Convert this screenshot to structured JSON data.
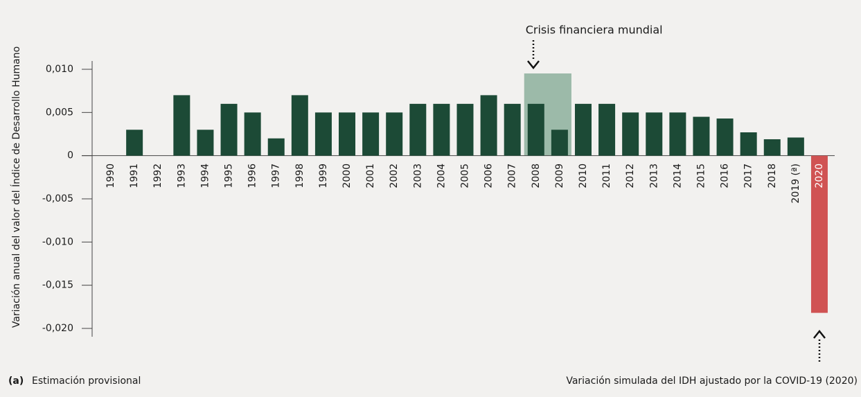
{
  "chart_data": {
    "type": "bar",
    "y_label": "Variación anual del valor del Índice de Desarrollo Humano",
    "categories": [
      "1990",
      "1991",
      "1992",
      "1993",
      "1994",
      "1995",
      "1996",
      "1997",
      "1998",
      "1999",
      "2000",
      "2001",
      "2002",
      "2003",
      "2004",
      "2005",
      "2006",
      "2007",
      "2008",
      "2009",
      "2010",
      "2011",
      "2012",
      "2013",
      "2014",
      "2015",
      "2016",
      "2017",
      "2018",
      "2019 (ª)",
      "2020"
    ],
    "values": [
      0,
      0.003,
      0,
      0.007,
      0.003,
      0.006,
      0.005,
      0.002,
      0.007,
      0.005,
      0.005,
      0.005,
      0.005,
      0.006,
      0.006,
      0.006,
      0.007,
      0.006,
      0.006,
      0.003,
      0.006,
      0.006,
      0.005,
      0.005,
      0.005,
      0.0045,
      0.0043,
      0.0027,
      0.0019,
      0.0021,
      -0.0182
    ],
    "color": "#1c4a36",
    "negative_color": "#d05353",
    "ylim": [
      -0.02,
      0.01
    ],
    "yticks": [
      {
        "value": -0.02,
        "label": "-0,020"
      },
      {
        "value": -0.015,
        "label": "-0,015"
      },
      {
        "value": -0.01,
        "label": "-0,010"
      },
      {
        "value": -0.005,
        "label": "-0,005"
      },
      0,
      {
        "value": 0.005,
        "label": "0,005"
      },
      {
        "value": 0.01,
        "label": "0,010"
      }
    ],
    "highlight": {
      "label": "Crisis financiera mundial",
      "from": "2008",
      "to": "2009",
      "color": "#9cbaa9"
    },
    "footnote_mark": "(a)",
    "footnote": "Estimación provisional",
    "note": "Variación simulada del IDH ajustado por la COVID-19 (2020)"
  }
}
